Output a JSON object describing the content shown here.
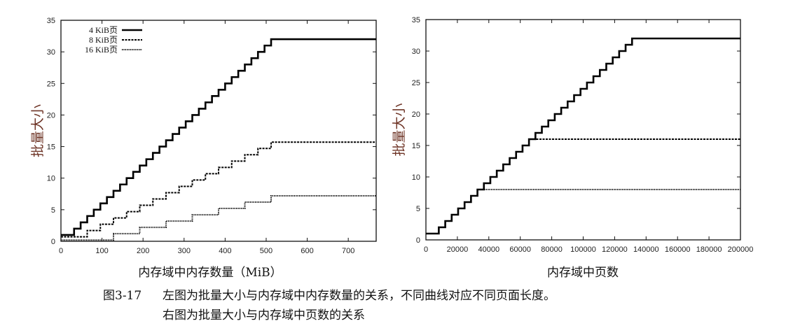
{
  "chart_data": [
    {
      "type": "line",
      "step": true,
      "title": "",
      "xlabel": "内存域中内存数量（MiB）",
      "ylabel": "批量大小",
      "xlim": [
        0,
        768
      ],
      "ylim": [
        0,
        35
      ],
      "xticks": [
        0,
        100,
        200,
        300,
        400,
        500,
        600,
        700
      ],
      "yticks": [
        0,
        5,
        10,
        15,
        20,
        25,
        30,
        35
      ],
      "grid": false,
      "legend_position": "top-left",
      "series": [
        {
          "name": "4 KiB页",
          "style": "solid",
          "x": [
            0,
            32,
            48,
            64,
            80,
            96,
            112,
            128,
            144,
            160,
            176,
            192,
            208,
            224,
            240,
            256,
            272,
            288,
            304,
            320,
            336,
            352,
            368,
            384,
            400,
            416,
            432,
            448,
            464,
            480,
            496,
            512
          ],
          "y": [
            1,
            2,
            3,
            4,
            5,
            6,
            7,
            8,
            9,
            10,
            11,
            12,
            13,
            14,
            15,
            16,
            17,
            18,
            19,
            20,
            21,
            22,
            23,
            24,
            25,
            26,
            27,
            28,
            29,
            30,
            31,
            32
          ]
        },
        {
          "name": "8 KiB页",
          "style": "dashed",
          "x": [
            0,
            64,
            96,
            128,
            160,
            192,
            224,
            256,
            288,
            320,
            352,
            384,
            416,
            448,
            480,
            512
          ],
          "y": [
            0.7,
            1.7,
            2.7,
            3.7,
            4.7,
            5.7,
            6.7,
            7.7,
            8.7,
            9.7,
            10.7,
            11.7,
            12.7,
            13.7,
            14.7,
            15.7
          ]
        },
        {
          "name": "16 KiB页",
          "style": "dotted",
          "x": [
            0,
            128,
            192,
            256,
            320,
            384,
            448,
            512
          ],
          "y": [
            0.2,
            1.2,
            2.2,
            3.2,
            4.2,
            5.2,
            6.2,
            7.2
          ]
        }
      ]
    },
    {
      "type": "line",
      "step": true,
      "title": "",
      "xlabel": "内存域中页数",
      "ylabel": "批量大小",
      "xlim": [
        0,
        200000
      ],
      "ylim": [
        0,
        35
      ],
      "xticks": [
        0,
        20000,
        40000,
        60000,
        80000,
        100000,
        120000,
        140000,
        160000,
        180000,
        200000
      ],
      "yticks": [
        0,
        5,
        10,
        15,
        20,
        25,
        30,
        35
      ],
      "grid": false,
      "series": [
        {
          "name": "8 KiB页",
          "style": "dashed",
          "x": [
            0,
            8192,
            12288,
            16384,
            20480,
            24576,
            28672,
            32768,
            36864,
            40960,
            45056,
            49152,
            53248,
            57344,
            61440,
            65536
          ],
          "y": [
            1,
            2,
            3,
            4,
            5,
            6,
            7,
            8,
            9,
            10,
            11,
            12,
            13,
            14,
            15,
            16
          ]
        },
        {
          "name": "16 KiB页",
          "style": "dotted",
          "x": [
            0,
            8192,
            12288,
            16384,
            20480,
            24576,
            28672,
            32768
          ],
          "y": [
            1,
            2,
            3,
            4,
            5,
            6,
            7,
            8
          ]
        },
        {
          "name": "4 KiB页",
          "style": "solid",
          "x": [
            0,
            8192,
            12288,
            16384,
            20480,
            24576,
            28672,
            32768,
            36864,
            40960,
            45056,
            49152,
            53248,
            57344,
            61440,
            65536,
            69632,
            73728,
            77824,
            81920,
            86016,
            90112,
            94208,
            98304,
            102400,
            106496,
            110592,
            114688,
            118784,
            122880,
            126976,
            131072
          ],
          "y": [
            1,
            2,
            3,
            4,
            5,
            6,
            7,
            8,
            9,
            10,
            11,
            12,
            13,
            14,
            15,
            16,
            17,
            18,
            19,
            20,
            21,
            22,
            23,
            24,
            25,
            26,
            27,
            28,
            29,
            30,
            31,
            32
          ]
        }
      ]
    }
  ],
  "caption": {
    "number": "图3-17",
    "line1": "左图为批量大小与内存域中内存数量的关系，不同曲线对应不同页面长度。",
    "line2": "右图为批量大小与内存域中页数的关系"
  }
}
